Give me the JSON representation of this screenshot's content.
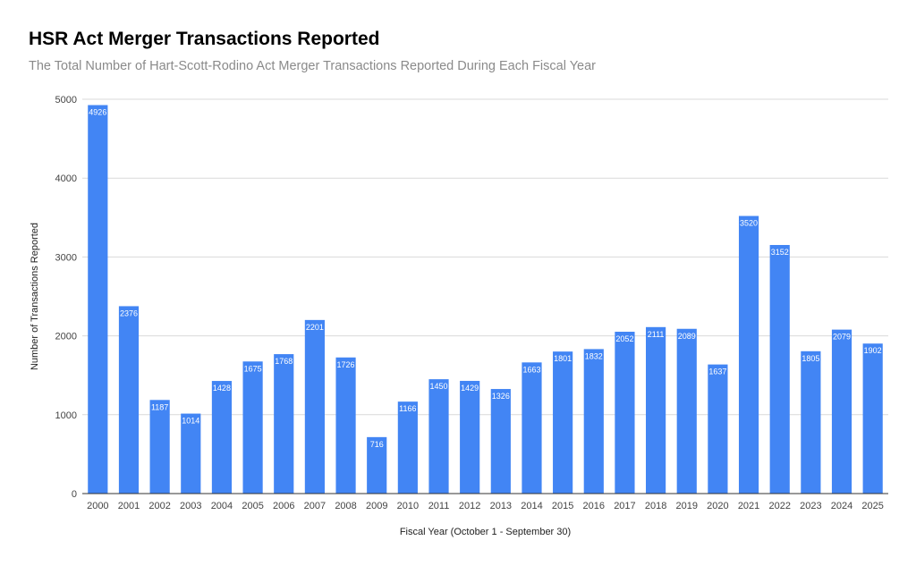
{
  "chart_data": {
    "type": "bar",
    "title": "HSR Act Merger Transactions Reported",
    "subtitle": "The Total Number of Hart-Scott-Rodino Act Merger Transactions Reported During Each Fiscal Year",
    "xlabel": "Fiscal Year (October 1 - September 30)",
    "ylabel": "Number of Transactions Reported",
    "categories": [
      "2000",
      "2001",
      "2002",
      "2003",
      "2004",
      "2005",
      "2006",
      "2007",
      "2008",
      "2009",
      "2010",
      "2011",
      "2012",
      "2013",
      "2014",
      "2015",
      "2016",
      "2017",
      "2018",
      "2019",
      "2020",
      "2021",
      "2022",
      "2023",
      "2024",
      "2025"
    ],
    "values": [
      4926,
      2376,
      1187,
      1014,
      1428,
      1675,
      1768,
      2201,
      1726,
      716,
      1166,
      1450,
      1429,
      1326,
      1663,
      1801,
      1832,
      2052,
      2111,
      2089,
      1637,
      3520,
      3152,
      1805,
      2079,
      1902
    ],
    "ylim": [
      0,
      5000
    ],
    "yticks": [
      0,
      1000,
      2000,
      3000,
      4000,
      5000
    ],
    "grid": true,
    "legend": "none",
    "bar_color": "#4285F4",
    "grid_color": "#d9d9d9"
  }
}
